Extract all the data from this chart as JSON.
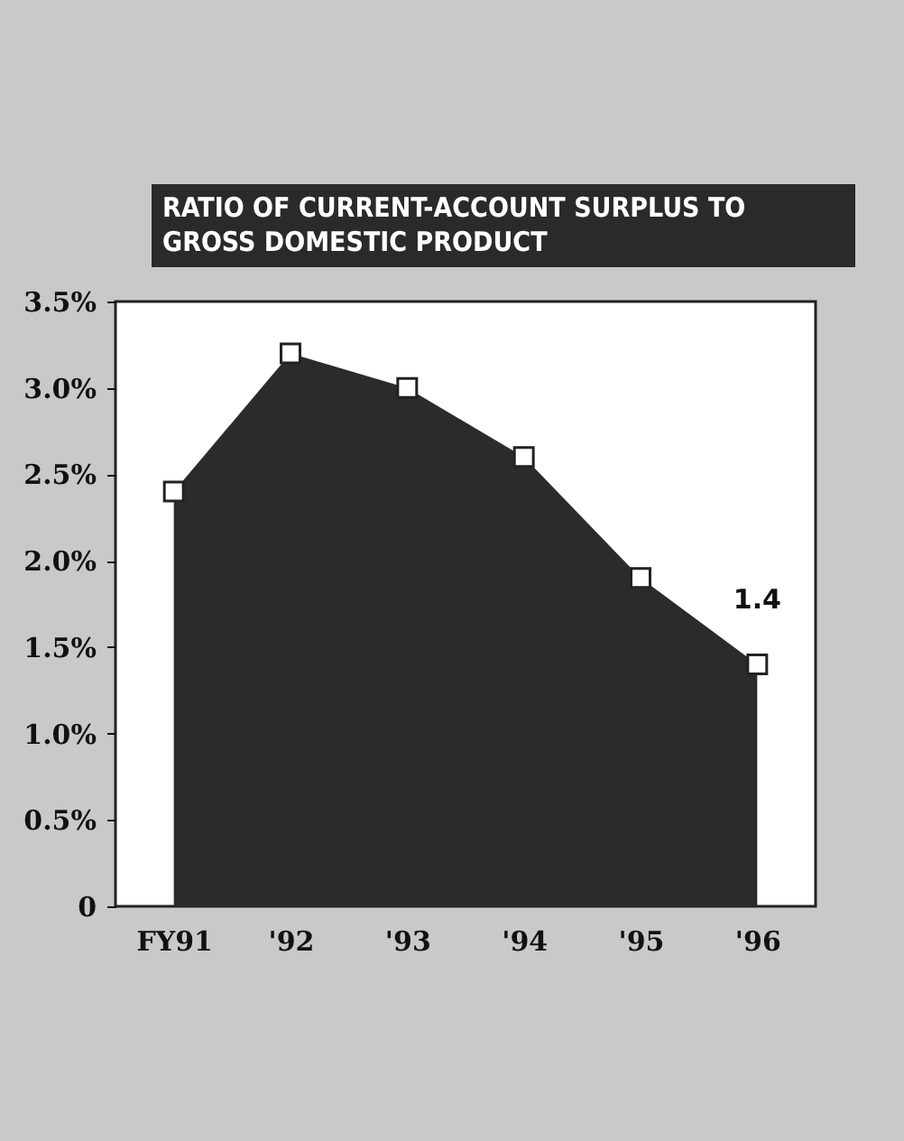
{
  "chart_data": {
    "type": "area",
    "title": "RATIO OF CURRENT-ACCOUNT SURPLUS TO GROSS DOMESTIC PRODUCT",
    "categories": [
      "FY91",
      "'92",
      "'93",
      "'94",
      "'95",
      "'96"
    ],
    "series": [
      {
        "color": "#2b2b2b",
        "values": [
          2.4,
          3.2,
          3.0,
          2.6,
          1.9,
          1.4
        ]
      }
    ],
    "ylim": [
      0,
      3.5
    ],
    "yticks": [
      {
        "value": 0,
        "label": "0"
      },
      {
        "value": 0.5,
        "label": "0.5%"
      },
      {
        "value": 1,
        "label": "1.0%"
      },
      {
        "value": 1.5,
        "label": "1.5%"
      },
      {
        "value": 2,
        "label": "2.0%"
      },
      {
        "value": 2.5,
        "label": "2.5%"
      },
      {
        "value": 3,
        "label": "3.0%"
      },
      {
        "value": 3.5,
        "label": "3.5%"
      }
    ],
    "marker": "square",
    "grid": false,
    "annotations": [
      {
        "text": "1.4",
        "x": "'96",
        "y": 1.4
      }
    ]
  }
}
